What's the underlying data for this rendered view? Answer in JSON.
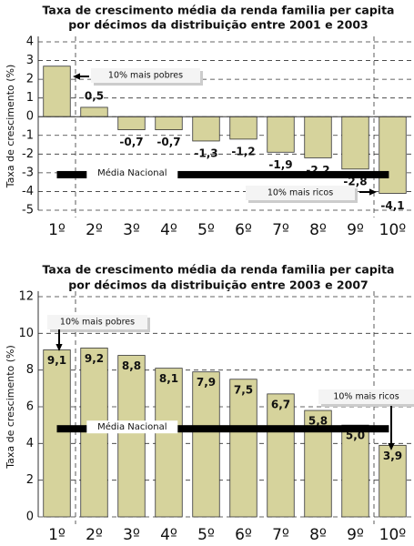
{
  "chart_data": [
    {
      "type": "bar",
      "title": [
        "Taxa de crescimento média da renda familia per capita",
        "por décimos da distribuição entre 2001 e 2003"
      ],
      "ylabel": "Taxa de crescimento (%)",
      "categories": [
        "1º",
        "2º",
        "3º",
        "4º",
        "5º",
        "6º",
        "7º",
        "8º",
        "9º",
        "10º"
      ],
      "values": [
        2.7,
        0.5,
        -0.7,
        -0.7,
        -1.3,
        -1.2,
        -1.9,
        -2.2,
        -2.8,
        -4.1
      ],
      "value_labels": [
        null,
        "0,5",
        "-0,7",
        "-0,7",
        "-1,3",
        "-1,2",
        "-1,9",
        "-2,2",
        "-2,8",
        "-4,1"
      ],
      "color": "#d6d39c",
      "ylim": [
        -5,
        4
      ],
      "yticks": [
        -5,
        -4,
        -3,
        -2,
        -1,
        0,
        1,
        2,
        3,
        4
      ],
      "grid": true,
      "reference_line": {
        "label": "Média Nacional",
        "value": -3.1
      },
      "annotations": [
        "10% mais pobres",
        "10% mais ricos"
      ]
    },
    {
      "type": "bar",
      "title": [
        "Taxa de crescimento média da renda familia per capita",
        "por décimos da distribuição entre 2003 e 2007"
      ],
      "ylabel": "Taxa de crescimento (%)",
      "categories": [
        "1º",
        "2º",
        "3º",
        "4º",
        "5º",
        "6º",
        "7º",
        "8º",
        "9º",
        "10º"
      ],
      "values": [
        9.1,
        9.2,
        8.8,
        8.1,
        7.9,
        7.5,
        6.7,
        5.8,
        5.0,
        3.9
      ],
      "value_labels": [
        "9,1",
        "9,2",
        "8,8",
        "8,1",
        "7,9",
        "7,5",
        "6,7",
        "5,8",
        "5,0",
        "3,9"
      ],
      "color": "#d6d39c",
      "ylim": [
        0,
        12
      ],
      "yticks": [
        0,
        2,
        4,
        6,
        8,
        10,
        12
      ],
      "grid": true,
      "reference_line": {
        "label": "Média Nacional",
        "value": 4.8
      },
      "annotations": [
        "10% mais pobres",
        "10% mais ricos"
      ]
    }
  ]
}
